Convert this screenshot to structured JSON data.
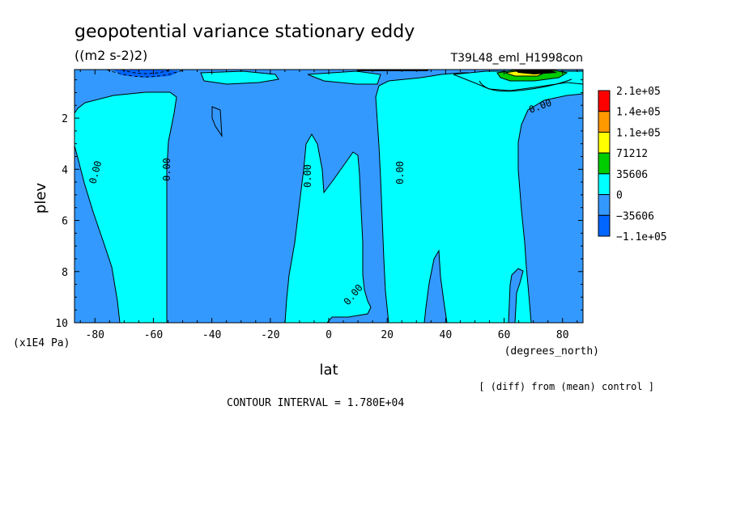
{
  "chart_data": {
    "type": "heatmap",
    "title": "geopotential variance stationary eddy",
    "units": "((m2 s-2)2)",
    "dataset": "T39L48_eml_H1998con",
    "xlabel": "lat",
    "xunits": "(degrees_north)",
    "ylabel": "plev",
    "yunits": "(x1E4 Pa)",
    "xlim": [
      -87,
      87
    ],
    "ylim": [
      10,
      0.1
    ],
    "x_ticks": [
      "-80",
      "-60",
      "-40",
      "-20",
      "0",
      "20",
      "40",
      "60",
      "80"
    ],
    "y_ticks": [
      "2",
      "4",
      "6",
      "8",
      "10"
    ],
    "contour_label": "0.00",
    "contour_interval_text": "CONTOUR INTERVAL = 1.780E+04",
    "note": "[ (diff) from (mean) control ]",
    "colorbar": {
      "levels": [
        "2.1e+05",
        "1.4e+05",
        "1.1e+05",
        "71212",
        "35606",
        "0",
        "−35606",
        "−1.1e+05"
      ],
      "colors": [
        "#ff0000",
        "#ff9900",
        "#ffff00",
        "#00cc00",
        "#00ffff",
        "#3399ff",
        "#0066ff"
      ]
    },
    "regions": {
      "negative_color": "#3399ff",
      "positive_color": "#00ffff",
      "strong_negative_color": "#0066ff",
      "strong_positive_color": "#00cc00"
    }
  }
}
